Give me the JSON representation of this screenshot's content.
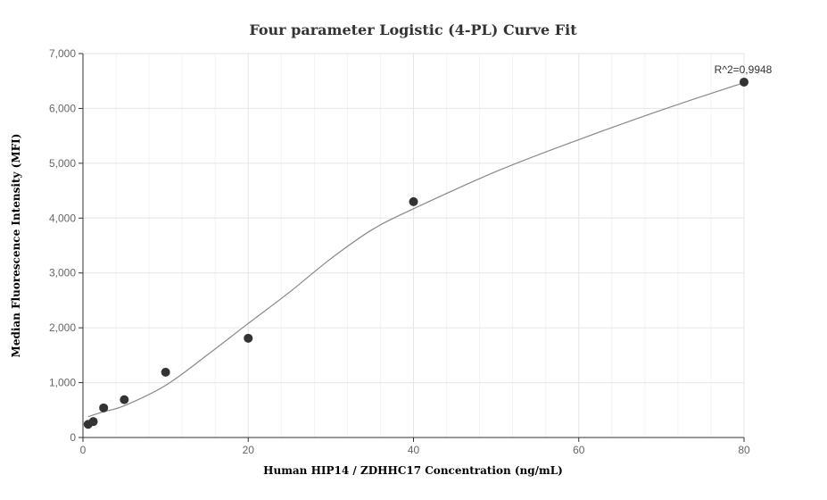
{
  "chart_data": {
    "type": "scatter",
    "title": "Four parameter Logistic (4-PL) Curve Fit",
    "xlabel": "Human HIP14 / ZDHHC17 Concentration (ng/mL)",
    "ylabel": "Median Fluorescence Intensity (MFI)",
    "xlim": [
      0,
      80
    ],
    "ylim": [
      0,
      7000
    ],
    "x_ticks": [
      0,
      20,
      40,
      60,
      80
    ],
    "y_ticks": [
      0,
      1000,
      2000,
      3000,
      4000,
      5000,
      6000,
      7000
    ],
    "x_tick_labels": [
      "0",
      "20",
      "40",
      "60",
      "80"
    ],
    "y_tick_labels": [
      "0",
      "1,000",
      "2,000",
      "3,000",
      "4,000",
      "5,000",
      "6,000",
      "7,000"
    ],
    "grid": true,
    "points": [
      {
        "x": 0.625,
        "y": 240
      },
      {
        "x": 1.25,
        "y": 290
      },
      {
        "x": 2.5,
        "y": 540
      },
      {
        "x": 5,
        "y": 690
      },
      {
        "x": 10,
        "y": 1190
      },
      {
        "x": 20,
        "y": 1810
      },
      {
        "x": 40,
        "y": 4300
      },
      {
        "x": 80,
        "y": 6480
      }
    ],
    "fit_curve": [
      {
        "x": 0.625,
        "y": 380
      },
      {
        "x": 2.5,
        "y": 470
      },
      {
        "x": 5,
        "y": 580
      },
      {
        "x": 10,
        "y": 950
      },
      {
        "x": 15,
        "y": 1500
      },
      {
        "x": 20,
        "y": 2080
      },
      {
        "x": 25,
        "y": 2650
      },
      {
        "x": 30,
        "y": 3260
      },
      {
        "x": 35,
        "y": 3790
      },
      {
        "x": 40,
        "y": 4170
      },
      {
        "x": 50,
        "y": 4850
      },
      {
        "x": 60,
        "y": 5430
      },
      {
        "x": 70,
        "y": 5970
      },
      {
        "x": 80,
        "y": 6470
      }
    ],
    "annotation": "R^2=0,9948",
    "colors": {
      "point": "#333333",
      "curve": "#888888",
      "grid": "#e6e6e6",
      "axis": "#333333"
    }
  }
}
